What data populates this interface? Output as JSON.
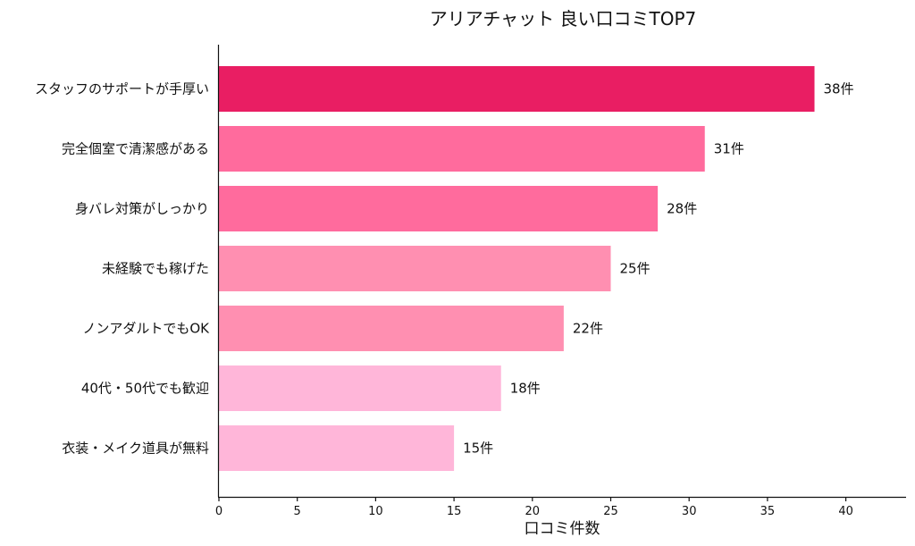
{
  "chart_data": {
    "type": "bar",
    "orientation": "horizontal",
    "title": "アリアチャット 良い口コミTOP7",
    "xlabel": "口コミ件数",
    "ylabel": "",
    "xlim": [
      0,
      44
    ],
    "xticks": [
      "0",
      "5",
      "10",
      "15",
      "20",
      "25",
      "30",
      "35",
      "40"
    ],
    "categories": [
      "スタッフのサポートが手厚い",
      "完全個室で清潔感がある",
      "身バレ対策がしっかり",
      "未経験でも稼げた",
      "ノンアダルトでもOK",
      "40代・50代でも歓迎",
      "衣装・メイク道具が無料"
    ],
    "values": [
      38,
      31,
      28,
      25,
      22,
      18,
      15
    ],
    "value_labels": [
      "38件",
      "31件",
      "28件",
      "25件",
      "22件",
      "18件",
      "15件"
    ],
    "colors": [
      "#e91e63",
      "#ff6b9d",
      "#ff6b9d",
      "#ff8fb1",
      "#ff8fb1",
      "#ffb6d9",
      "#ffb6d9"
    ],
    "grid": false,
    "legend": "none"
  }
}
